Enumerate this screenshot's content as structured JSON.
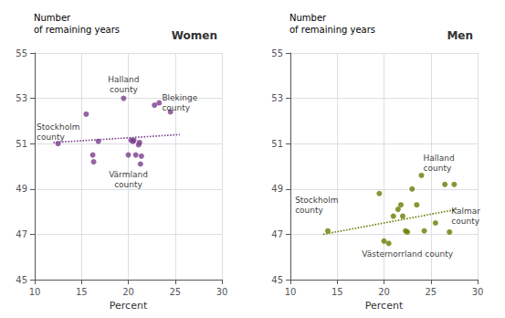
{
  "chart_data": [
    {
      "type": "scatter",
      "title": "Women",
      "xlabel": "Percent",
      "ylabel": "Number\nof remaining years",
      "xlim": [
        10,
        30
      ],
      "ylim": [
        45,
        55
      ],
      "xticks": [
        10,
        15,
        20,
        25,
        30
      ],
      "yticks": [
        45,
        47,
        49,
        51,
        53,
        55
      ],
      "grid": true,
      "series": [
        {
          "type": "scatter",
          "color": "#7b3f8c",
          "x": [
            12.5,
            15.5,
            16.2,
            16.3,
            16.8,
            19.5,
            20.0,
            20.3,
            20.5,
            20.6,
            20.8,
            21.1,
            21.2,
            21.3,
            21.4,
            22.8,
            23.3,
            24.5
          ],
          "values": [
            51.0,
            52.3,
            50.5,
            50.2,
            51.1,
            53.0,
            50.5,
            51.15,
            51.1,
            51.15,
            50.5,
            50.95,
            51.05,
            50.1,
            50.45,
            52.7,
            52.8,
            52.4
          ]
        },
        {
          "type": "line",
          "line_style": "dotted",
          "color": "#7b3f8c",
          "x": [
            12.0,
            25.5
          ],
          "values": [
            51.05,
            51.4
          ]
        }
      ],
      "annotations": [
        {
          "text": "Halland\ncounty",
          "x": 19.5,
          "y": 53.15
        },
        {
          "text": "Blekinge\ncounty",
          "x": 23.6,
          "y": 52.8
        },
        {
          "text": "Stockholm\ncounty",
          "x": 10.2,
          "y": 51.5
        },
        {
          "text": "Värmland\ncounty",
          "x": 20.0,
          "y": 49.85
        }
      ]
    },
    {
      "type": "scatter",
      "title": "Men",
      "xlabel": "Percent",
      "ylabel": "Number\nof remaining years",
      "xlim": [
        10,
        30
      ],
      "ylim": [
        45,
        55
      ],
      "xticks": [
        10,
        15,
        20,
        25,
        30
      ],
      "yticks": [
        45,
        47,
        49,
        51,
        53,
        55
      ],
      "grid": true,
      "series": [
        {
          "type": "scatter",
          "color": "#6b7a00",
          "x": [
            14.0,
            19.5,
            20.0,
            20.5,
            21.0,
            21.5,
            21.8,
            22.0,
            22.3,
            22.5,
            23.0,
            23.5,
            24.0,
            24.3,
            25.5,
            26.5,
            27.0,
            27.5
          ],
          "values": [
            47.15,
            48.8,
            46.7,
            46.6,
            47.8,
            48.1,
            48.3,
            47.8,
            47.15,
            47.1,
            49.0,
            48.3,
            49.6,
            47.15,
            47.5,
            49.2,
            47.1,
            49.2
          ]
        },
        {
          "type": "line",
          "line_style": "dotted",
          "color": "#6b7a00",
          "x": [
            13.5,
            27.8
          ],
          "values": [
            47.0,
            48.1
          ]
        }
      ],
      "annotations": [
        {
          "text": "Halland\ncounty",
          "x": 24.2,
          "y": 49.7
        },
        {
          "text": "Kalmar\ncounty",
          "x": 27.2,
          "y": 47.8
        },
        {
          "text": "Stockholm\ncounty",
          "x": 10.5,
          "y": 48.3
        },
        {
          "text": "Västernorrland county",
          "x": 22.5,
          "y": 46.35
        }
      ]
    }
  ]
}
